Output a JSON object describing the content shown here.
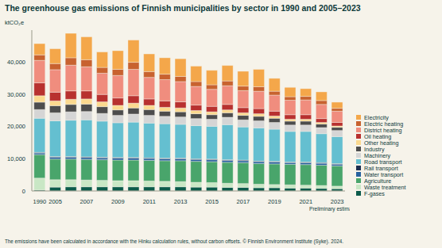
{
  "chart_data": {
    "type": "bar",
    "stacked": true,
    "grid": false,
    "legend": "right",
    "title": "The greenhouse gas emissions of Finnish municipalities by sector in 1990 and 2005–2023",
    "y_label": "ktCO₂e",
    "footnote": "The emissions have been calculated in accordance with the Hinku calculation rules, without carbon offsets. © Finnish Environment Institute (Syke). 2024.",
    "annotation": {
      "text": "Preliminary estimates",
      "category": "2023"
    },
    "categories": [
      "1990",
      "2005",
      null,
      "2007",
      null,
      "2009",
      null,
      "2011",
      null,
      "2013",
      null,
      "2015",
      null,
      "2017",
      null,
      "2019",
      null,
      "2021",
      null,
      "2023"
    ],
    "ylim": [
      0,
      50000
    ],
    "yticks": [
      0,
      {
        "value": 10000,
        "label": "10,000"
      },
      {
        "value": 20000,
        "label": "20,000"
      },
      {
        "value": 30000,
        "label": "30,000"
      },
      {
        "value": 40000,
        "label": "40,000"
      }
    ],
    "series": [
      {
        "name": "Electricity",
        "color": "#f4a74a",
        "values": [
          3500,
          4600,
          7600,
          7100,
          4800,
          5800,
          6900,
          5500,
          5100,
          5500,
          4800,
          4500,
          4800,
          4600,
          5400,
          4000,
          2900,
          2400,
          2700,
          1900
        ]
      },
      {
        "name": "Electric heating",
        "color": "#c8622f",
        "values": [
          1700,
          1900,
          2300,
          2200,
          1800,
          1900,
          2200,
          1800,
          1700,
          1600,
          1500,
          1400,
          1500,
          1400,
          1400,
          1200,
          1100,
          1100,
          1200,
          900
        ]
      },
      {
        "name": "District heating",
        "color": "#f08d7e",
        "values": [
          7000,
          7000,
          8000,
          7500,
          6600,
          7000,
          8200,
          6700,
          6600,
          6300,
          5800,
          5300,
          5800,
          5300,
          5400,
          5000,
          4500,
          4600,
          4400,
          3500
        ]
      },
      {
        "name": "Oil heating",
        "color": "#b8312f",
        "values": [
          4000,
          2700,
          2600,
          2500,
          2300,
          2300,
          2300,
          2000,
          2000,
          1900,
          1700,
          1700,
          1700,
          1600,
          1600,
          1500,
          1400,
          1400,
          1200,
          1100
        ]
      },
      {
        "name": "Other heating",
        "color": "#fbd98f",
        "values": [
          2000,
          1500,
          1600,
          1600,
          1500,
          1400,
          1500,
          1300,
          1200,
          1200,
          1000,
          900,
          900,
          800,
          800,
          700,
          600,
          600,
          500,
          400
        ]
      },
      {
        "name": "Industry",
        "color": "#4d4d4d",
        "values": [
          2300,
          2200,
          2300,
          2300,
          2100,
          1700,
          1900,
          1800,
          1600,
          1600,
          1500,
          1400,
          1400,
          1400,
          1400,
          1300,
          1200,
          1200,
          1100,
          1000
        ]
      },
      {
        "name": "Machinery",
        "color": "#d5d5d5",
        "values": [
          2700,
          2500,
          2600,
          2600,
          2400,
          2300,
          2500,
          2400,
          2300,
          2300,
          2200,
          2200,
          2300,
          2200,
          2200,
          2100,
          2000,
          2000,
          1900,
          1900
        ]
      },
      {
        "name": "Road transport",
        "color": "#64bfd0",
        "values": [
          10600,
          11100,
          11300,
          11500,
          11200,
          10800,
          11000,
          10800,
          10700,
          10500,
          10300,
          10200,
          10900,
          10300,
          10300,
          10000,
          9500,
          9500,
          9000,
          8400
        ]
      },
      {
        "name": "Rail transport",
        "color": "#1c2d4f",
        "values": [
          200,
          200,
          200,
          200,
          200,
          200,
          200,
          200,
          200,
          200,
          200,
          200,
          200,
          200,
          200,
          200,
          200,
          200,
          200,
          200
        ]
      },
      {
        "name": "Water transport",
        "color": "#27629f",
        "values": [
          500,
          600,
          600,
          600,
          600,
          600,
          600,
          600,
          600,
          600,
          600,
          600,
          600,
          600,
          600,
          600,
          500,
          600,
          600,
          500
        ]
      },
      {
        "name": "Agriculture",
        "color": "#49a56b",
        "values": [
          7300,
          6400,
          6400,
          6400,
          6400,
          6400,
          6400,
          6400,
          6400,
          6500,
          6500,
          6500,
          6500,
          6500,
          6400,
          6400,
          6400,
          6400,
          6300,
          6300
        ]
      },
      {
        "name": "Waste treatment",
        "color": "#c9e7c5",
        "values": [
          3700,
          2300,
          2200,
          2100,
          2000,
          1900,
          1900,
          1800,
          1700,
          1600,
          1500,
          1400,
          1300,
          1200,
          1100,
          1000,
          1000,
          900,
          900,
          800
        ]
      },
      {
        "name": "F-gases",
        "color": "#0c5b4b",
        "values": [
          300,
          1200,
          1300,
          1300,
          1300,
          1300,
          1300,
          1300,
          1300,
          1300,
          1200,
          1200,
          1100,
          1100,
          1000,
          1000,
          900,
          900,
          800,
          700
        ]
      }
    ]
  }
}
